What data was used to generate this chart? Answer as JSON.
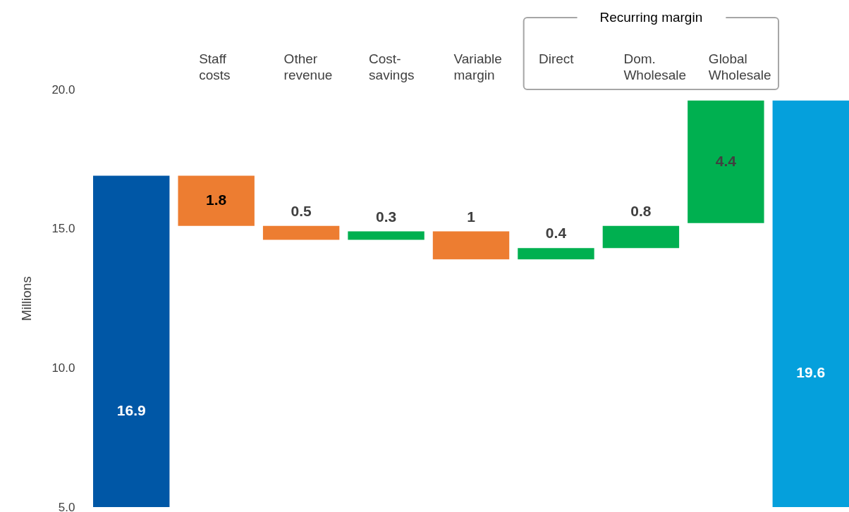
{
  "chart_data": {
    "type": "bar",
    "categories": [
      null,
      "Staff\ncosts",
      "Other\nrevenue",
      "Cost-\nsavings",
      "Variable\nmargin",
      "Direct",
      "Dom.\nWholesale",
      "Global\nWholesale",
      null
    ],
    "values": [
      16.9,
      -1.8,
      -0.5,
      0.3,
      -1,
      0.4,
      0.8,
      4.4,
      19.6
    ],
    "base": [
      null,
      16.9,
      15.1,
      14.6,
      14.9,
      13.9,
      14.3,
      15.2,
      null
    ],
    "colors": [
      "#0057a6",
      "#ed7d31",
      "#ed7d31",
      "#00b050",
      "#ed7d31",
      "#00b050",
      "#00b050",
      "#00b050",
      "#05a0dc"
    ],
    "value_labels": [
      "16.9",
      "1.8",
      "0.5",
      "0.3",
      "1",
      "0.4",
      "0.8",
      "4.4",
      "19.6"
    ],
    "ylabel": "Millions",
    "ylim": [
      5,
      20
    ],
    "yticks": [
      {
        "value": 5,
        "label": "5.0"
      },
      {
        "value": 10,
        "label": "10.0"
      },
      {
        "value": 15,
        "label": "15.0"
      },
      {
        "value": 20,
        "label": "20.0"
      }
    ],
    "annotations": [
      "Recurring margin"
    ],
    "grid": false
  }
}
